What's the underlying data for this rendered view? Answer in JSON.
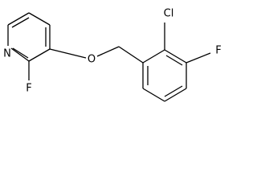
{
  "atoms": [
    {
      "label": "N"
    },
    {
      "label": "F"
    },
    {
      "label": "O"
    },
    {
      "label": "Cl"
    },
    {
      "label": "F"
    }
  ]
}
